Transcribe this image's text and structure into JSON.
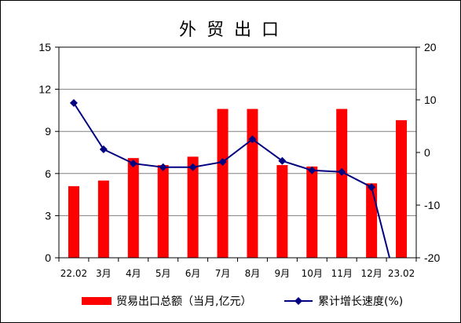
{
  "chart_data": {
    "type": "bar",
    "title": "外 贸 出 口",
    "categories": [
      "22.02",
      "3月",
      "4月",
      "5月",
      "6月",
      "7月",
      "8月",
      "9月",
      "10月",
      "11月",
      "12月",
      "23.02"
    ],
    "series": [
      {
        "name": "贸易出口总额（当月,亿元）",
        "type": "bar",
        "axis": "left",
        "color": "#FF0000",
        "values": [
          5.1,
          5.5,
          7.1,
          6.6,
          7.2,
          10.6,
          10.6,
          6.6,
          6.5,
          10.6,
          5.3,
          9.8
        ]
      },
      {
        "name": "累计增长速度(%)",
        "type": "line",
        "axis": "right",
        "color": "#000080",
        "marker": "diamond",
        "values": [
          9.4,
          0.6,
          -2.1,
          -2.8,
          -2.8,
          -1.8,
          2.5,
          -1.6,
          -3.4,
          -3.7,
          -6.6,
          -28.8
        ]
      }
    ],
    "y_left": {
      "ylim": [
        0,
        15
      ],
      "ticks": [
        0,
        3,
        6,
        9,
        12,
        15
      ]
    },
    "y_right": {
      "ylim": [
        -20,
        20
      ],
      "ticks": [
        -20,
        -10,
        0,
        10,
        20
      ]
    },
    "grid": true,
    "gridline_color": "#808080",
    "legend": "bottom"
  }
}
